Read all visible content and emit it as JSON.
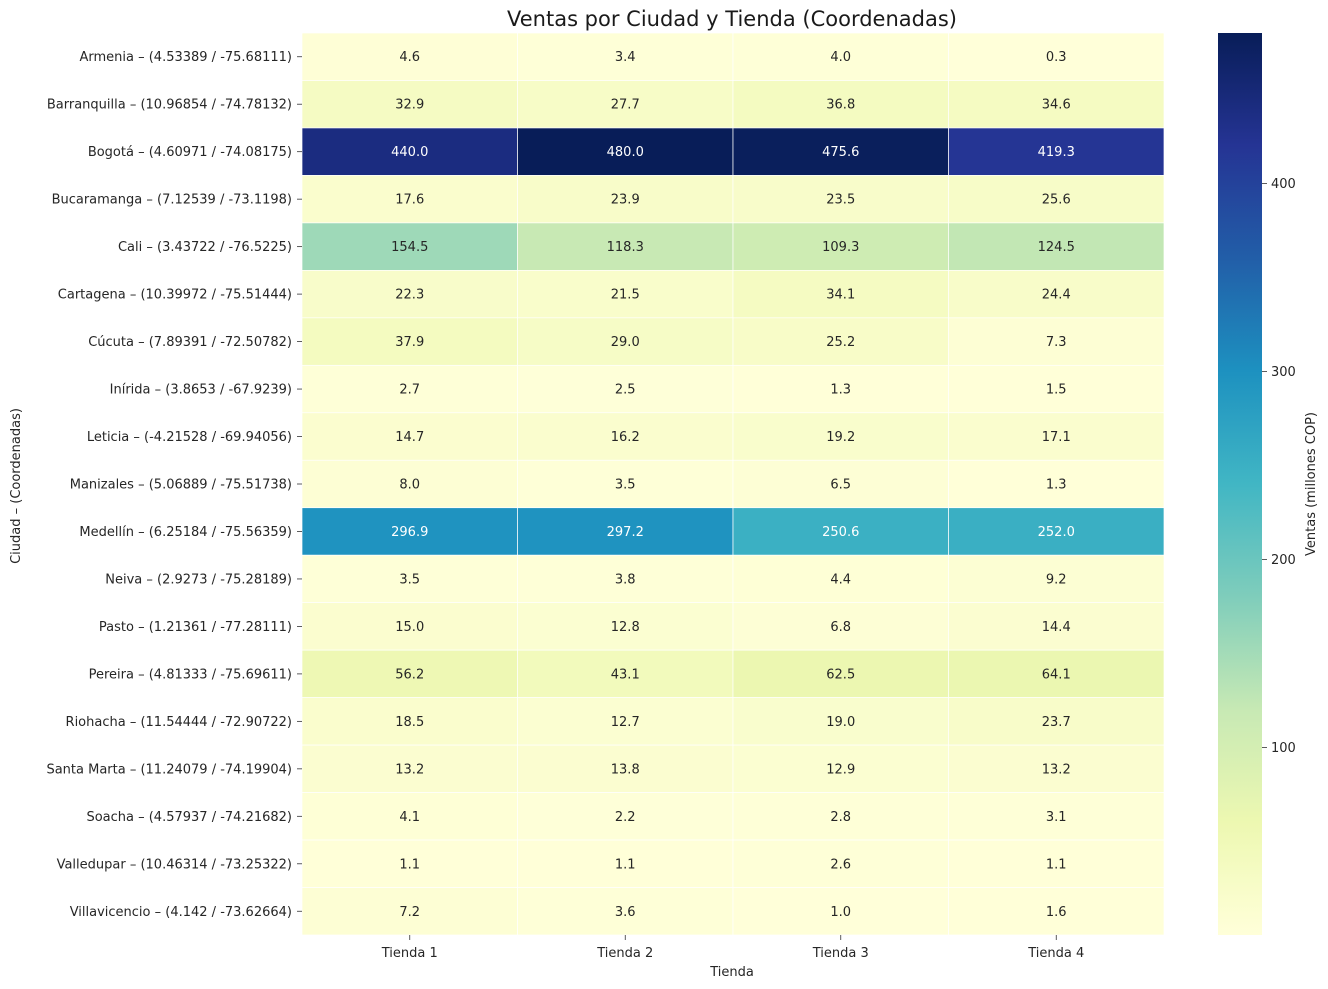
{
  "chart_data": {
    "type": "heatmap",
    "title": "Ventas por Ciudad y Tienda (Coordenadas)",
    "xlabel": "Tienda",
    "ylabel": "Ciudad – (Coordenadas)",
    "colorbar_label": "Ventas (millones COP)",
    "colormap": "YlGnBu",
    "colorbar_range": [
      0.3,
      480.0
    ],
    "colorbar_ticks": [
      100,
      200,
      300,
      400
    ],
    "columns": [
      "Tienda 1",
      "Tienda 2",
      "Tienda 3",
      "Tienda 4"
    ],
    "rows": [
      "Armenia – (4.53389 / -75.68111)",
      "Barranquilla – (10.96854 / -74.78132)",
      "Bogotá – (4.60971 / -74.08175)",
      "Bucaramanga – (7.12539 / -73.1198)",
      "Cali – (3.43722 / -76.5225)",
      "Cartagena – (10.39972 / -75.51444)",
      "Cúcuta – (7.89391 / -72.50782)",
      "Inírida – (3.8653 / -67.9239)",
      "Leticia – (-4.21528 / -69.94056)",
      "Manizales – (5.06889 / -75.51738)",
      "Medellín – (6.25184 / -75.56359)",
      "Neiva – (2.9273 / -75.28189)",
      "Pasto – (1.21361 / -77.28111)",
      "Pereira – (4.81333 / -75.69611)",
      "Riohacha – (11.54444 / -72.90722)",
      "Santa Marta – (11.24079 / -74.19904)",
      "Soacha – (4.57937 / -74.21682)",
      "Valledupar – (10.46314 / -73.25322)",
      "Villavicencio – (4.142 / -73.62664)"
    ],
    "values": [
      [
        4.6,
        3.4,
        4.0,
        0.3
      ],
      [
        32.9,
        27.7,
        36.8,
        34.6
      ],
      [
        440.0,
        480.0,
        475.6,
        419.3
      ],
      [
        17.6,
        23.9,
        23.5,
        25.6
      ],
      [
        154.5,
        118.3,
        109.3,
        124.5
      ],
      [
        22.3,
        21.5,
        34.1,
        24.4
      ],
      [
        37.9,
        29.0,
        25.2,
        7.3
      ],
      [
        2.7,
        2.5,
        1.3,
        1.5
      ],
      [
        14.7,
        16.2,
        19.2,
        17.1
      ],
      [
        8.0,
        3.5,
        6.5,
        1.3
      ],
      [
        296.9,
        297.2,
        250.6,
        252.0
      ],
      [
        3.5,
        3.8,
        4.4,
        9.2
      ],
      [
        15.0,
        12.8,
        6.8,
        14.4
      ],
      [
        56.2,
        43.1,
        62.5,
        64.1
      ],
      [
        18.5,
        12.7,
        19.0,
        23.7
      ],
      [
        13.2,
        13.8,
        12.9,
        13.2
      ],
      [
        4.1,
        2.2,
        2.8,
        3.1
      ],
      [
        1.1,
        1.1,
        2.6,
        1.1
      ],
      [
        7.2,
        3.6,
        1.0,
        1.6
      ]
    ]
  }
}
